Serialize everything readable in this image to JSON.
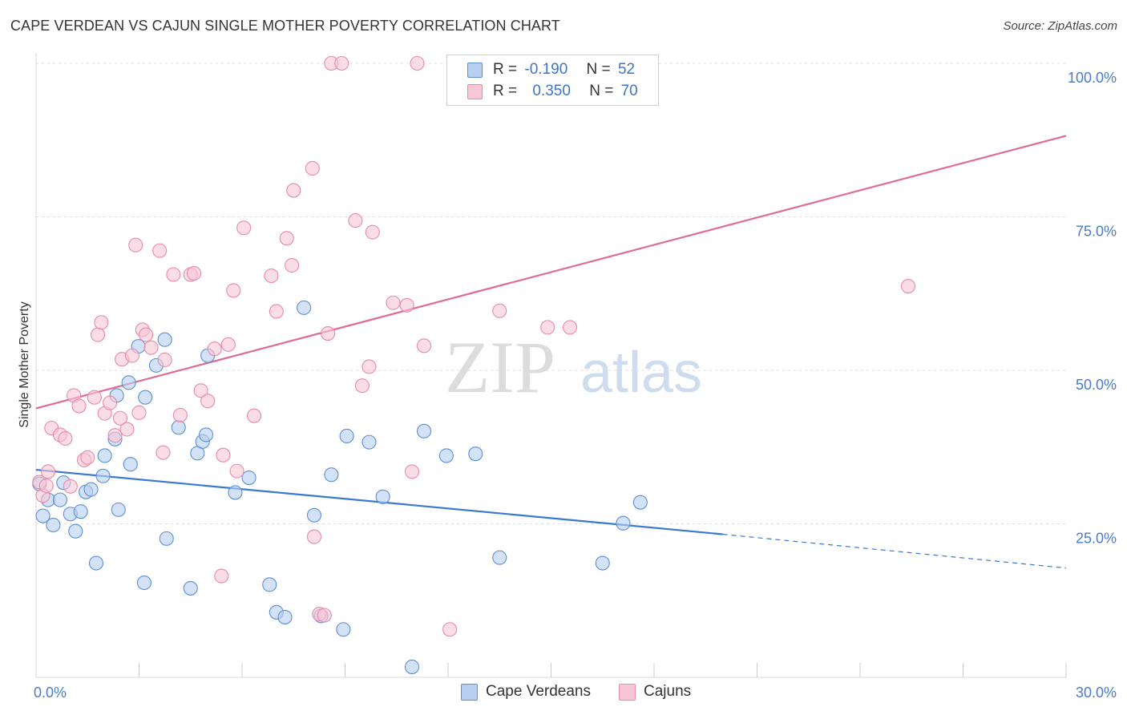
{
  "title": "CAPE VERDEAN VS CAJUN SINGLE MOTHER POVERTY CORRELATION CHART",
  "source": "Source: ZipAtlas.com",
  "watermark": {
    "zip": "ZIP",
    "atlas": "atlas"
  },
  "legend": {
    "rows": [
      {
        "r_label": "R =",
        "r_value": "-0.190",
        "n_label": "N =",
        "n_value": "52",
        "fill": "#b8cff2",
        "stroke": "#5b8fd6"
      },
      {
        "r_label": "R =",
        "r_value": "0.350",
        "n_label": "N =",
        "n_value": "70",
        "fill": "#f9c6d5",
        "stroke": "#e88aa8"
      }
    ]
  },
  "bottom_legend": [
    {
      "label": "Cape Verdeans",
      "fill": "#b8cff2",
      "stroke": "#5b8fd6"
    },
    {
      "label": "Cajuns",
      "fill": "#f9c6d5",
      "stroke": "#e88aa8"
    }
  ],
  "chart_data": {
    "type": "scatter",
    "ylabel": "Single Mother Poverty",
    "xlabel": "",
    "xlim": [
      0,
      30
    ],
    "ylim": [
      0,
      100
    ],
    "x_tick_labels": [
      {
        "value": 0,
        "label": "0.0%"
      },
      {
        "value": 30,
        "label": "30.0%"
      }
    ],
    "y_tick_labels": [
      {
        "value": 25,
        "label": "25.0%"
      },
      {
        "value": 50,
        "label": "50.0%"
      },
      {
        "value": 75,
        "label": "75.0%"
      },
      {
        "value": 100,
        "label": "100.0%"
      }
    ],
    "grid": "horizontal dashed",
    "legend_position": "top-center",
    "series": [
      {
        "name": "Cape Verdeans",
        "color": "#5b8fd6",
        "fill": "#b8cff2",
        "trend": {
          "x0": 0,
          "y0": 33.8,
          "x1": 20.0,
          "y1": 23.3,
          "dash_to_x": 30,
          "dash_to_y": 17.8,
          "color": "#3b78d0"
        },
        "points": [
          [
            0.1,
            31.5
          ],
          [
            0.2,
            26.3
          ],
          [
            0.35,
            28.9
          ],
          [
            0.5,
            24.8
          ],
          [
            0.7,
            28.9
          ],
          [
            0.8,
            31.7
          ],
          [
            1.0,
            26.6
          ],
          [
            1.15,
            23.8
          ],
          [
            1.3,
            27.0
          ],
          [
            1.45,
            30.2
          ],
          [
            1.6,
            30.6
          ],
          [
            1.75,
            18.6
          ],
          [
            1.95,
            32.8
          ],
          [
            2.0,
            36.1
          ],
          [
            2.3,
            38.8
          ],
          [
            2.35,
            45.9
          ],
          [
            2.4,
            27.3
          ],
          [
            2.7,
            48.0
          ],
          [
            2.75,
            34.7
          ],
          [
            2.98,
            53.9
          ],
          [
            3.15,
            15.4
          ],
          [
            3.18,
            45.6
          ],
          [
            3.5,
            50.8
          ],
          [
            3.75,
            55.0
          ],
          [
            3.8,
            22.6
          ],
          [
            4.15,
            40.7
          ],
          [
            4.5,
            14.5
          ],
          [
            4.7,
            36.5
          ],
          [
            4.85,
            38.4
          ],
          [
            4.95,
            39.5
          ],
          [
            5.0,
            52.4
          ],
          [
            5.8,
            30.1
          ],
          [
            6.2,
            32.5
          ],
          [
            6.8,
            15.1
          ],
          [
            7.0,
            10.6
          ],
          [
            7.25,
            9.8
          ],
          [
            7.8,
            60.2
          ],
          [
            8.1,
            26.4
          ],
          [
            8.3,
            10.0
          ],
          [
            8.6,
            33.0
          ],
          [
            8.95,
            7.8
          ],
          [
            9.05,
            39.3
          ],
          [
            9.7,
            38.3
          ],
          [
            10.1,
            29.4
          ],
          [
            10.95,
            1.7
          ],
          [
            11.3,
            40.1
          ],
          [
            11.95,
            36.1
          ],
          [
            12.8,
            36.4
          ],
          [
            13.5,
            19.5
          ],
          [
            16.5,
            18.6
          ],
          [
            17.1,
            25.1
          ],
          [
            17.6,
            28.5
          ]
        ]
      },
      {
        "name": "Cajuns",
        "color": "#e88aa8",
        "fill": "#f9c6d5",
        "trend": {
          "x0": 0,
          "y0": 43.8,
          "x1": 30,
          "y1": 88.2,
          "color": "#e06b94"
        },
        "points": [
          [
            0.1,
            31.8
          ],
          [
            0.2,
            29.6
          ],
          [
            0.3,
            31.2
          ],
          [
            0.35,
            33.5
          ],
          [
            0.45,
            40.6
          ],
          [
            0.7,
            39.5
          ],
          [
            0.85,
            38.9
          ],
          [
            1.0,
            31.1
          ],
          [
            1.1,
            45.9
          ],
          [
            1.25,
            44.2
          ],
          [
            1.4,
            35.4
          ],
          [
            1.5,
            35.8
          ],
          [
            1.7,
            45.6
          ],
          [
            1.8,
            55.8
          ],
          [
            1.9,
            57.8
          ],
          [
            2.0,
            43.0
          ],
          [
            2.15,
            44.7
          ],
          [
            2.3,
            39.4
          ],
          [
            2.45,
            42.2
          ],
          [
            2.5,
            51.8
          ],
          [
            2.65,
            40.4
          ],
          [
            2.8,
            52.4
          ],
          [
            2.9,
            70.4
          ],
          [
            3.0,
            43.1
          ],
          [
            3.1,
            56.6
          ],
          [
            3.2,
            55.8
          ],
          [
            3.35,
            53.7
          ],
          [
            3.6,
            69.5
          ],
          [
            3.7,
            36.6
          ],
          [
            3.75,
            51.7
          ],
          [
            4.0,
            65.6
          ],
          [
            4.2,
            42.7
          ],
          [
            4.5,
            65.6
          ],
          [
            4.6,
            65.8
          ],
          [
            4.8,
            46.7
          ],
          [
            5.0,
            45.0
          ],
          [
            5.2,
            53.5
          ],
          [
            5.4,
            16.5
          ],
          [
            5.45,
            36.2
          ],
          [
            5.6,
            54.2
          ],
          [
            5.75,
            63.0
          ],
          [
            5.85,
            33.6
          ],
          [
            6.05,
            73.2
          ],
          [
            6.35,
            42.6
          ],
          [
            6.85,
            65.4
          ],
          [
            7.0,
            59.6
          ],
          [
            7.3,
            71.5
          ],
          [
            7.45,
            67.1
          ],
          [
            7.5,
            79.3
          ],
          [
            8.05,
            82.9
          ],
          [
            8.1,
            22.9
          ],
          [
            8.25,
            10.3
          ],
          [
            8.4,
            10.1
          ],
          [
            8.5,
            56.0
          ],
          [
            8.6,
            100.0
          ],
          [
            8.9,
            100.0
          ],
          [
            9.3,
            74.4
          ],
          [
            9.5,
            47.5
          ],
          [
            9.7,
            50.6
          ],
          [
            9.8,
            72.5
          ],
          [
            10.4,
            61.0
          ],
          [
            10.8,
            60.6
          ],
          [
            10.95,
            33.5
          ],
          [
            11.1,
            100.0
          ],
          [
            11.3,
            54.0
          ],
          [
            12.05,
            7.8
          ],
          [
            13.5,
            59.7
          ],
          [
            14.9,
            57.0
          ],
          [
            15.55,
            57.0
          ],
          [
            25.4,
            63.7
          ]
        ]
      }
    ]
  }
}
